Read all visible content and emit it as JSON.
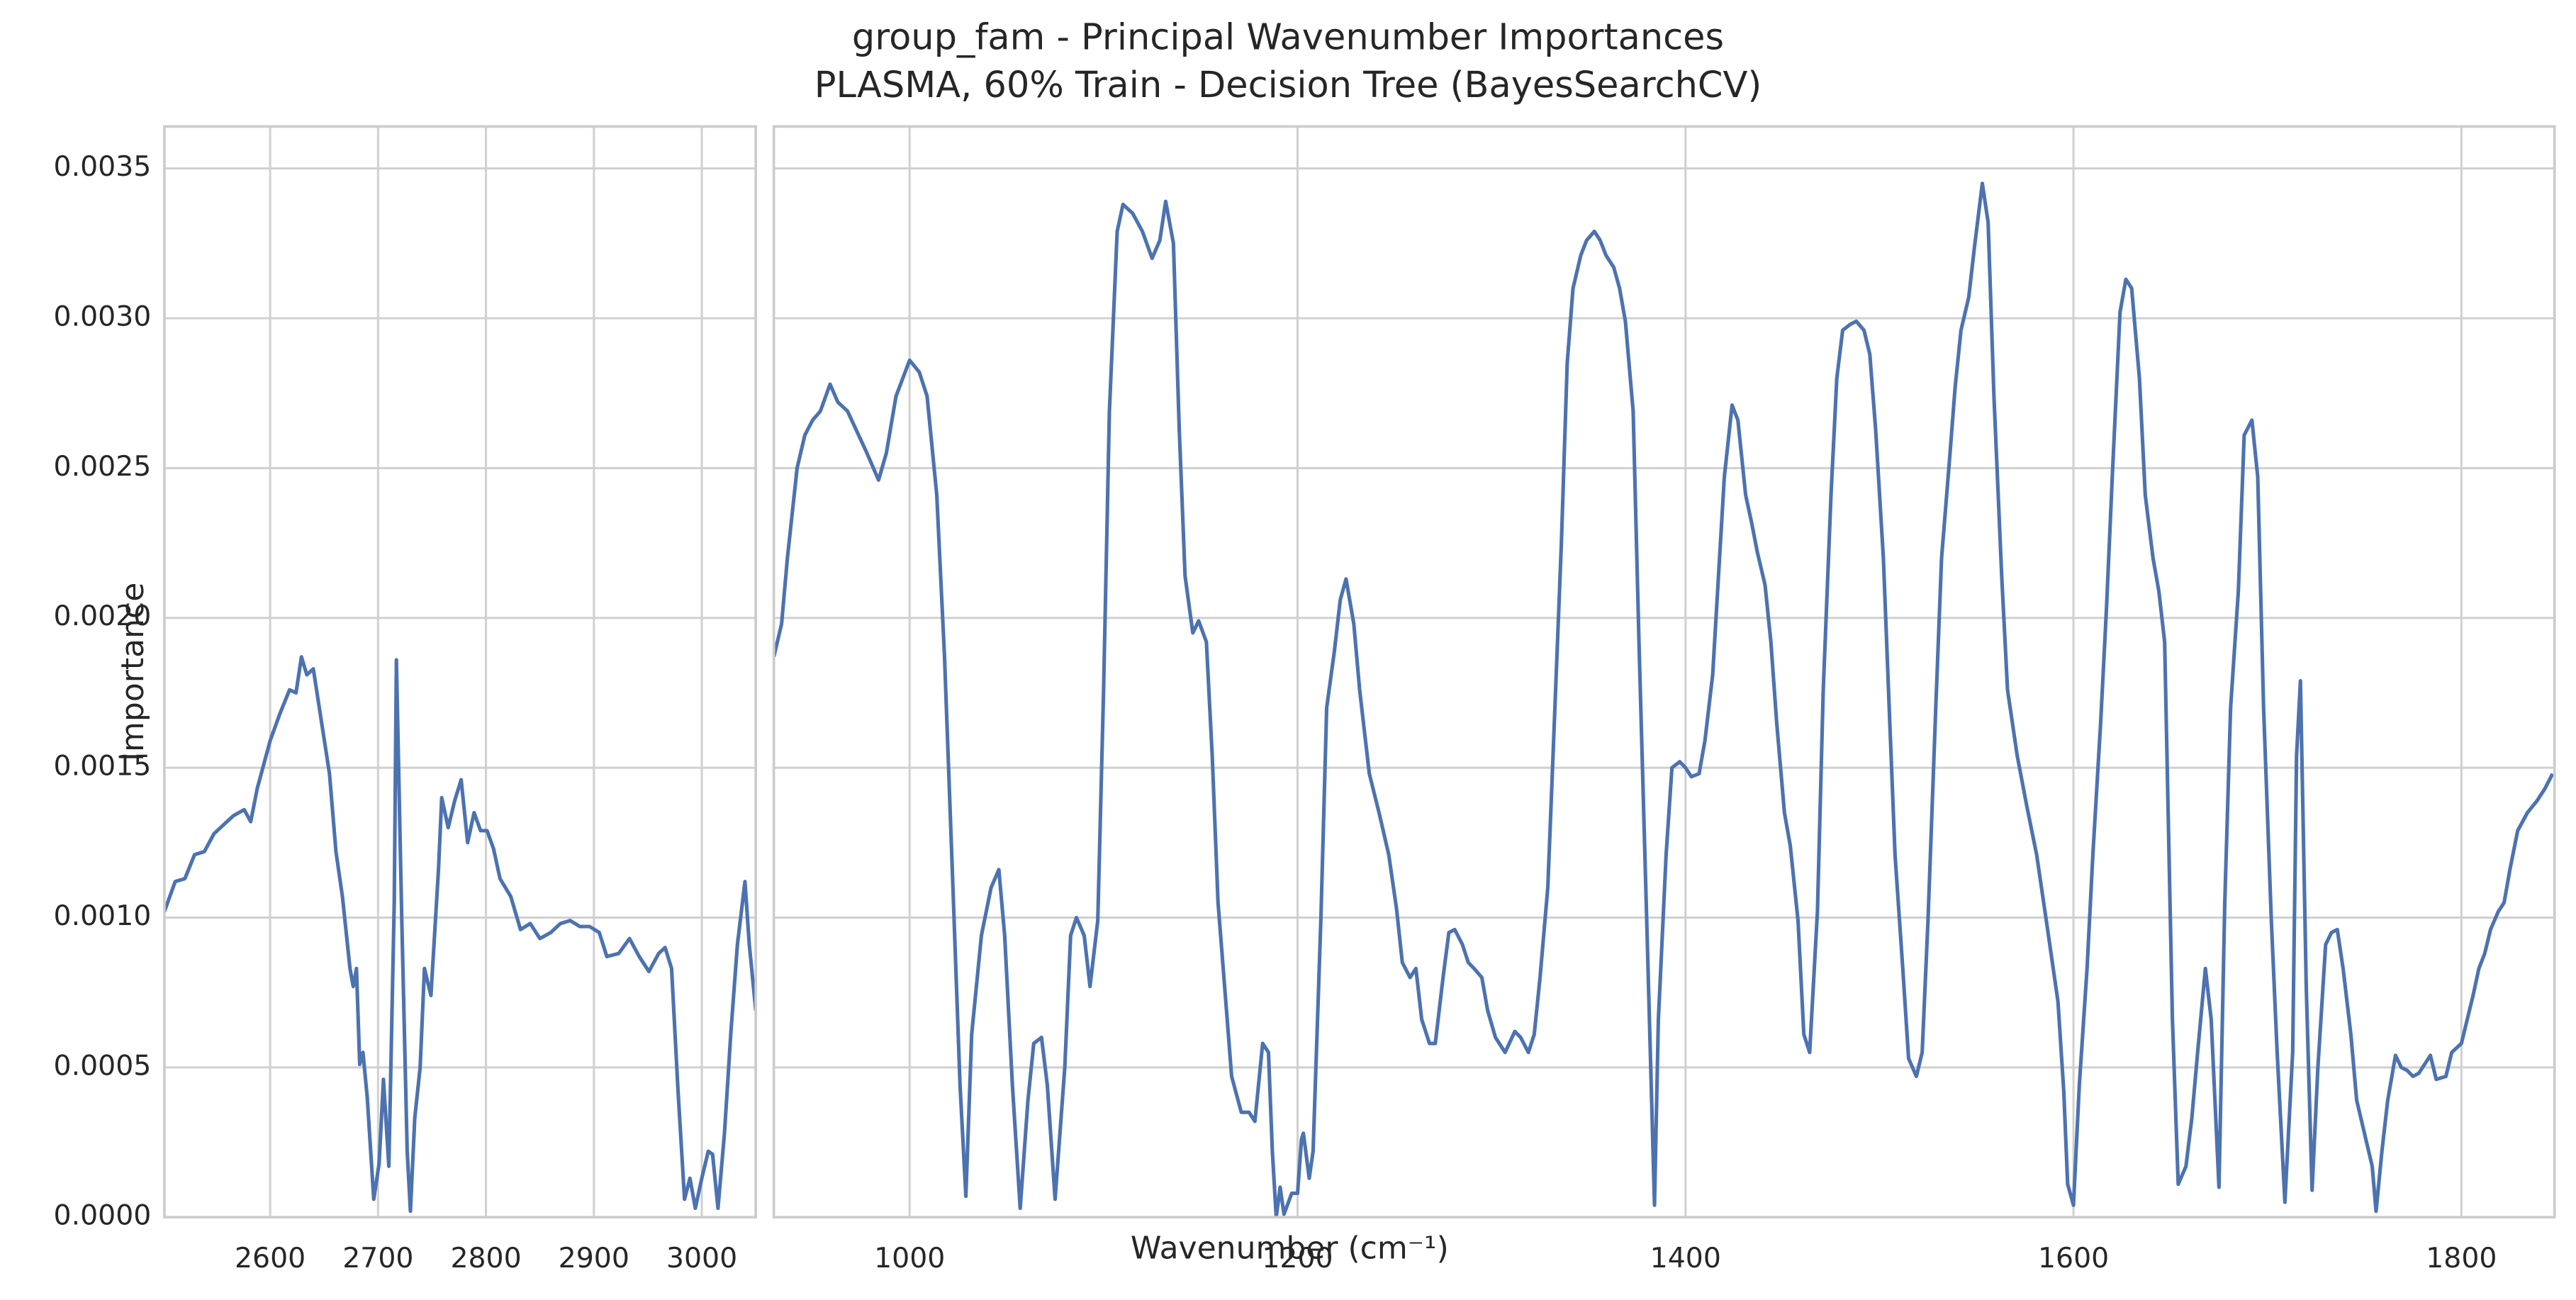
{
  "chart_data": {
    "type": "line",
    "title": "group_fam - Principal Wavenumber Importances",
    "subtitle": "PLASMA, 60% Train - Decision Tree (BayesSearchCV)",
    "x_label": "Wavenumber (cm⁻¹)",
    "y_label": "Importance",
    "grid": true,
    "color": "#4c72b0",
    "ylim": [
      0,
      0.00364
    ],
    "yticks": [
      {
        "value": 0,
        "label": "0.0000"
      },
      {
        "value": 0.0005,
        "label": "0.0005"
      },
      {
        "value": 0.001,
        "label": "0.0010"
      },
      {
        "value": 0.0015,
        "label": "0.0015"
      },
      {
        "value": 0.002,
        "label": "0.0020"
      },
      {
        "value": 0.0025,
        "label": "0.0025"
      },
      {
        "value": 0.003,
        "label": "0.0030"
      },
      {
        "value": 0.0035,
        "label": "0.0035"
      }
    ],
    "panels": [
      {
        "xlim": [
          2502,
          3050
        ],
        "xticks": [
          2600,
          2700,
          2800,
          2900,
          3000
        ],
        "x": [
          2502,
          2512,
          2521,
          2530,
          2539,
          2548,
          2557,
          2566,
          2576,
          2582,
          2588,
          2594,
          2600,
          2609,
          2618,
          2624,
          2629,
          2634,
          2640,
          2649,
          2655,
          2661,
          2667,
          2674,
          2677,
          2680,
          2683,
          2686,
          2690,
          2696,
          2701,
          2705,
          2710,
          2715,
          2717,
          2722,
          2727,
          2730,
          2734,
          2739,
          2743,
          2749,
          2756,
          2759,
          2765,
          2771,
          2777,
          2783,
          2789,
          2795,
          2801,
          2807,
          2813,
          2823,
          2832,
          2841,
          2850,
          2860,
          2869,
          2878,
          2887,
          2896,
          2905,
          2912,
          2923,
          2933,
          2942,
          2951,
          2960,
          2966,
          2972,
          2978,
          2984,
          2989,
          2994,
          3000,
          3006,
          3010,
          3015,
          3021,
          3027,
          3033,
          3040,
          3044,
          3050
        ],
        "values": [
          0.00102,
          0.00112,
          0.00113,
          0.00121,
          0.00122,
          0.00128,
          0.00131,
          0.00134,
          0.00136,
          0.00132,
          0.00143,
          0.00151,
          0.00159,
          0.00168,
          0.00176,
          0.00175,
          0.00187,
          0.00181,
          0.00183,
          0.00162,
          0.00148,
          0.00122,
          0.00107,
          0.00083,
          0.00077,
          0.00083,
          0.00051,
          0.00055,
          0.0004,
          6e-05,
          0.00018,
          0.00046,
          0.00017,
          0.00105,
          0.00186,
          0.00099,
          0.00022,
          2e-05,
          0.00033,
          0.0005,
          0.00083,
          0.00074,
          0.00116,
          0.0014,
          0.0013,
          0.00139,
          0.00146,
          0.00125,
          0.00135,
          0.00129,
          0.00129,
          0.00123,
          0.00113,
          0.00107,
          0.00096,
          0.00098,
          0.00093,
          0.00095,
          0.00098,
          0.00099,
          0.00097,
          0.00097,
          0.00095,
          0.00087,
          0.00088,
          0.00093,
          0.00087,
          0.00082,
          0.00088,
          0.0009,
          0.00083,
          0.00042,
          6e-05,
          0.00013,
          3e-05,
          0.00013,
          0.00022,
          0.00021,
          3e-05,
          0.00028,
          0.00062,
          0.00091,
          0.00112,
          0.00091,
          0.00069
        ]
      },
      {
        "xlim": [
          930,
          1848
        ],
        "xticks": [
          1000,
          1200,
          1400,
          1600,
          1800
        ],
        "x": [
          930,
          934,
          937,
          942,
          946,
          950,
          954,
          959,
          963,
          968,
          973,
          978,
          984,
          988,
          993,
          1000,
          1005,
          1009,
          1014,
          1018,
          1022,
          1026,
          1029,
          1032,
          1037,
          1042,
          1046,
          1049,
          1053,
          1057,
          1061,
          1064,
          1068,
          1071,
          1075,
          1080,
          1083,
          1086,
          1090,
          1093,
          1097,
          1100,
          1103,
          1107,
          1110,
          1115,
          1120,
          1125,
          1129,
          1132,
          1136,
          1139,
          1142,
          1146,
          1149,
          1153,
          1156,
          1159,
          1163,
          1166,
          1171,
          1175,
          1178,
          1182,
          1185,
          1187,
          1189,
          1191,
          1193,
          1197,
          1200,
          1202,
          1203,
          1206,
          1208,
          1212,
          1215,
          1219,
          1222,
          1225,
          1229,
          1232,
          1237,
          1242,
          1247,
          1251,
          1254,
          1258,
          1261,
          1264,
          1268,
          1271,
          1275,
          1278,
          1281,
          1285,
          1288,
          1291,
          1295,
          1298,
          1302,
          1307,
          1312,
          1315,
          1319,
          1322,
          1325,
          1329,
          1332,
          1336,
          1339,
          1342,
          1346,
          1349,
          1353,
          1356,
          1359,
          1363,
          1366,
          1369,
          1373,
          1376,
          1380,
          1384,
          1386,
          1390,
          1393,
          1397,
          1400,
          1403,
          1407,
          1410,
          1414,
          1417,
          1420,
          1424,
          1427,
          1431,
          1434,
          1437,
          1441,
          1444,
          1447,
          1451,
          1454,
          1458,
          1461,
          1464,
          1468,
          1471,
          1475,
          1478,
          1481,
          1485,
          1488,
          1492,
          1495,
          1498,
          1502,
          1505,
          1508,
          1512,
          1515,
          1519,
          1522,
          1525,
          1529,
          1532,
          1536,
          1539,
          1542,
          1546,
          1549,
          1553,
          1556,
          1559,
          1563,
          1566,
          1571,
          1576,
          1581,
          1586,
          1592,
          1595,
          1597,
          1600,
          1603,
          1607,
          1610,
          1614,
          1617,
          1620,
          1624,
          1627,
          1630,
          1634,
          1637,
          1641,
          1644,
          1647,
          1651,
          1654,
          1658,
          1661,
          1664,
          1668,
          1671,
          1675,
          1678,
          1681,
          1685,
          1688,
          1692,
          1695,
          1698,
          1702,
          1705,
          1709,
          1713,
          1715,
          1717,
          1720,
          1723,
          1726,
          1730,
          1733,
          1736,
          1739,
          1743,
          1746,
          1750,
          1754,
          1756,
          1759,
          1762,
          1766,
          1769,
          1772,
          1775,
          1778,
          1781,
          1784,
          1787,
          1792,
          1795,
          1800,
          1803,
          1806,
          1809,
          1812,
          1815,
          1819,
          1822,
          1825,
          1829,
          1834,
          1839,
          1843,
          1847
        ],
        "values": [
          0.00187,
          0.00198,
          0.0022,
          0.0025,
          0.00261,
          0.00266,
          0.00269,
          0.00278,
          0.00272,
          0.00269,
          0.00262,
          0.00255,
          0.00246,
          0.00255,
          0.00274,
          0.00286,
          0.00282,
          0.00274,
          0.00241,
          0.00187,
          0.00116,
          0.00044,
          7e-05,
          0.00061,
          0.00094,
          0.0011,
          0.00116,
          0.00094,
          0.00044,
          3e-05,
          0.00039,
          0.00058,
          0.0006,
          0.00044,
          6e-05,
          0.0005,
          0.00094,
          0.001,
          0.00094,
          0.00077,
          0.00099,
          0.00176,
          0.00269,
          0.00329,
          0.00338,
          0.00335,
          0.00329,
          0.0032,
          0.00326,
          0.00339,
          0.00325,
          0.00263,
          0.00214,
          0.00195,
          0.00199,
          0.00192,
          0.00154,
          0.00105,
          0.00072,
          0.00047,
          0.00035,
          0.00035,
          0.00032,
          0.00058,
          0.00055,
          0.00022,
          0,
          0.0001,
          1e-05,
          8e-05,
          8e-05,
          0.00026,
          0.00028,
          0.00013,
          0.00022,
          0.00099,
          0.0017,
          0.00189,
          0.00206,
          0.00213,
          0.00198,
          0.00176,
          0.00148,
          0.00135,
          0.00121,
          0.00103,
          0.00085,
          0.0008,
          0.00083,
          0.00066,
          0.00058,
          0.00058,
          0.0008,
          0.00095,
          0.00096,
          0.00091,
          0.00085,
          0.00083,
          0.0008,
          0.00069,
          0.0006,
          0.00055,
          0.00062,
          0.0006,
          0.00055,
          0.00061,
          0.0008,
          0.0011,
          0.00159,
          0.00225,
          0.00285,
          0.0031,
          0.00321,
          0.00326,
          0.00329,
          0.00326,
          0.00321,
          0.00317,
          0.0031,
          0.00299,
          0.00269,
          0.00192,
          0.00099,
          4e-05,
          0.00066,
          0.00121,
          0.0015,
          0.00152,
          0.0015,
          0.00147,
          0.00148,
          0.00159,
          0.00181,
          0.00214,
          0.00247,
          0.00271,
          0.00266,
          0.00241,
          0.00232,
          0.00222,
          0.00211,
          0.00192,
          0.00165,
          0.00135,
          0.00124,
          0.00099,
          0.00061,
          0.00055,
          0.00102,
          0.00176,
          0.00241,
          0.0028,
          0.00296,
          0.00298,
          0.00299,
          0.00296,
          0.00288,
          0.00263,
          0.0022,
          0.0017,
          0.00121,
          0.00083,
          0.00053,
          0.00047,
          0.00055,
          0.00099,
          0.0017,
          0.0022,
          0.00252,
          0.00277,
          0.00296,
          0.00307,
          0.00324,
          0.00345,
          0.00332,
          0.00274,
          0.00214,
          0.00176,
          0.00154,
          0.00137,
          0.00121,
          0.00099,
          0.00072,
          0.00042,
          0.00011,
          4e-05,
          0.00044,
          0.00083,
          0.00121,
          0.00165,
          0.00203,
          0.00247,
          0.00302,
          0.00313,
          0.0031,
          0.0028,
          0.00241,
          0.0022,
          0.00209,
          0.00192,
          0.00066,
          0.00011,
          0.00017,
          0.00033,
          0.00055,
          0.00083,
          0.00066,
          0.0001,
          0.00105,
          0.0017,
          0.00209,
          0.00261,
          0.00266,
          0.00247,
          0.0017,
          0.00099,
          0.00055,
          5e-05,
          0.00055,
          0.00154,
          0.00179,
          0.00077,
          9e-05,
          0.0005,
          0.00091,
          0.00095,
          0.00096,
          0.00083,
          0.00061,
          0.00039,
          0.00028,
          0.00017,
          2e-05,
          0.00022,
          0.00039,
          0.00054,
          0.0005,
          0.00049,
          0.00047,
          0.00048,
          0.00051,
          0.00054,
          0.00046,
          0.00047,
          0.00055,
          0.00058,
          0.00066,
          0.00074,
          0.00083,
          0.00088,
          0.00096,
          0.00102,
          0.00105,
          0.00116,
          0.00129,
          0.00135,
          0.00139,
          0.00143,
          0.00148
        ]
      }
    ]
  }
}
